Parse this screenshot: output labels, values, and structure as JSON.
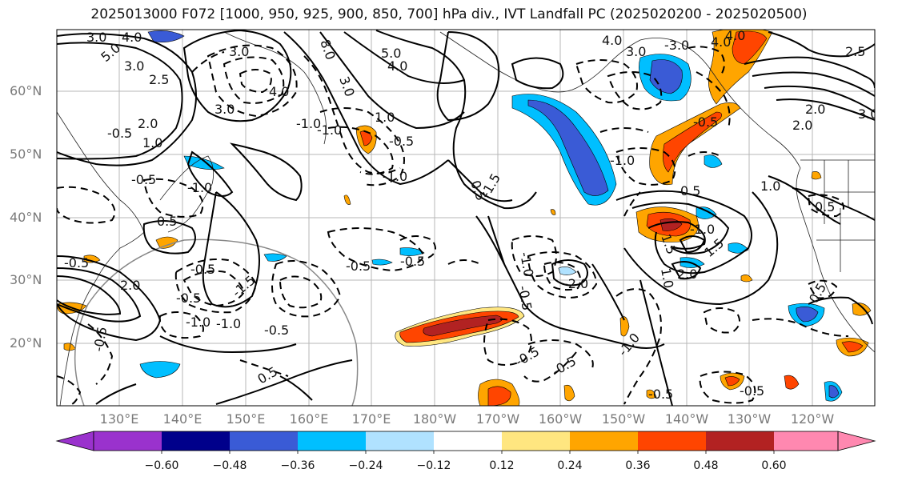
{
  "title": "2025013000 F072 [1000, 950, 925, 900, 850, 700] hPa div., IVT Landfall PC (2025020200 - 2025020500)",
  "axes": {
    "lat_labels": [
      "60°N",
      "50°N",
      "40°N",
      "30°N",
      "20°N"
    ],
    "lon_labels": [
      "130°E",
      "140°E",
      "150°E",
      "160°E",
      "170°E",
      "180°W",
      "170°W",
      "160°W",
      "150°W",
      "140°W",
      "130°W",
      "120°W"
    ]
  },
  "colorbar": {
    "ticks": [
      "−0.60",
      "−0.48",
      "−0.36",
      "−0.24",
      "−0.12",
      "0.12",
      "0.24",
      "0.36",
      "0.48",
      "0.60"
    ],
    "colors": [
      "#9a32cd",
      "#00008b",
      "#3a5bd6",
      "#00bfff",
      "#b0e2ff",
      "#ffffff",
      "#ffe680",
      "#ffa500",
      "#ff4500",
      "#b22222",
      "#ff88b0"
    ]
  },
  "contour_labels": [
    "3.0",
    "4.0",
    "5.0",
    "3.0",
    "2.5",
    "3.0",
    "4.0",
    "3.0",
    "2.0",
    "8.0",
    "5.0",
    "4.0",
    "4.0",
    "3.0",
    "3.0",
    "4.0",
    "-3.0",
    "4.0",
    "2.5",
    "-1.0",
    "-1.0",
    "-0.5",
    "1.0",
    "2.0",
    "3.0",
    "2.0",
    "-0.5",
    "1.0",
    "0.5",
    "-0.5",
    "-1.0",
    "-1.0",
    "0.5",
    "-0.5",
    "1.0",
    "-1.0",
    "-1.5",
    "0.5",
    "0.5",
    "-0.5",
    "1.5",
    "-1.0",
    "1.5",
    "-0.5",
    "-2.0",
    "2.0",
    "1.0",
    "-1.0",
    "2.0",
    "-1.0",
    "-1.0",
    "-0.5",
    "-0.5",
    "-0.5",
    "-0.5",
    "-0.5",
    "0.5",
    "-0.5",
    "0.5",
    "-1.0",
    "-0.5",
    "-1.5",
    "-0.5",
    "-0.5",
    "-0.5"
  ]
}
